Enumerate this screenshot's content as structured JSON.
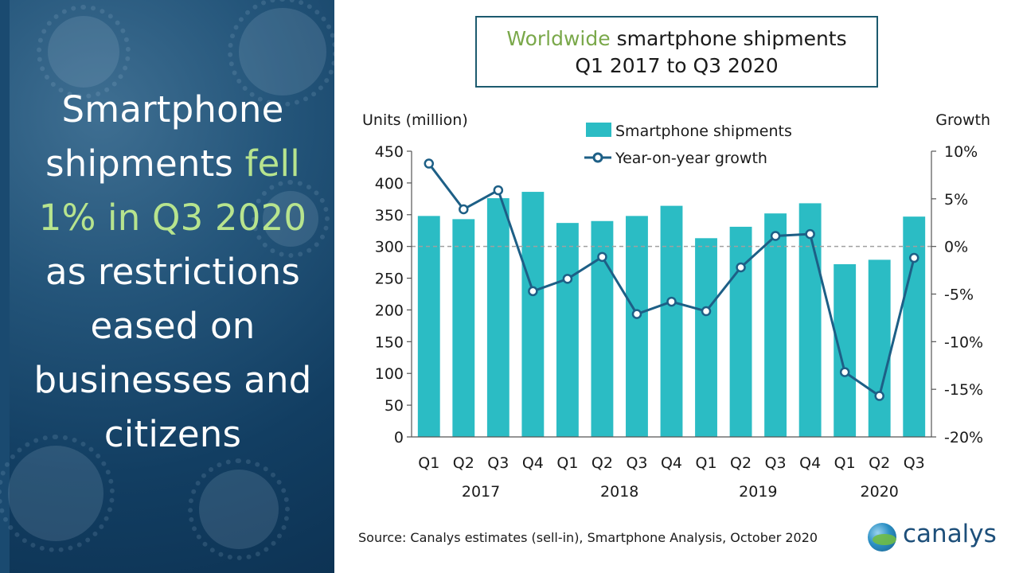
{
  "headline": {
    "line1": "Smartphone",
    "line2_a": "shipments ",
    "line2_b": "fell",
    "line3": "1% in Q3 2020",
    "line4": "as restrictions",
    "line5": "eased on",
    "line6": "businesses and",
    "line7": "citizens",
    "highlight_color": "#b7e48e"
  },
  "title": {
    "green_part": "Worldwide",
    "rest_part": " smartphone shipments",
    "line2": "Q1 2017 to Q3 2020"
  },
  "chart_data": {
    "type": "bar",
    "title": "Worldwide smartphone shipments Q1 2017 to Q3 2020",
    "ylabel": "Units (million)",
    "y2label": "Growth",
    "ylim": [
      0,
      450
    ],
    "y2lim": [
      -20,
      10
    ],
    "yticks": [
      "0",
      "50",
      "100",
      "150",
      "200",
      "250",
      "300",
      "350",
      "400",
      "450"
    ],
    "y2ticks": [
      "-20%",
      "-15%",
      "-10%",
      "-5%",
      "0%",
      "5%",
      "10%"
    ],
    "categories": [
      "Q1",
      "Q2",
      "Q3",
      "Q4",
      "Q1",
      "Q2",
      "Q3",
      "Q4",
      "Q1",
      "Q2",
      "Q3",
      "Q4",
      "Q1",
      "Q2",
      "Q3"
    ],
    "years": [
      {
        "label": "2017",
        "start": 0,
        "end": 3
      },
      {
        "label": "2018",
        "start": 4,
        "end": 7
      },
      {
        "label": "2019",
        "start": 8,
        "end": 11
      },
      {
        "label": "2020",
        "start": 12,
        "end": 14
      }
    ],
    "series": [
      {
        "name": "Smartphone shipments",
        "type": "bar",
        "axis": "left",
        "values": [
          348,
          343,
          376,
          386,
          337,
          340,
          348,
          364,
          313,
          331,
          352,
          368,
          272,
          279,
          347
        ],
        "color": "#2bbcc4"
      },
      {
        "name": "Year-on-year growth",
        "type": "line",
        "axis": "right",
        "values": [
          8.7,
          3.9,
          5.9,
          -4.7,
          -3.4,
          -1.1,
          -7.1,
          -5.8,
          -6.8,
          -2.2,
          1.1,
          1.3,
          -13.2,
          -15.7,
          -1.2
        ],
        "color": "#1d5f86"
      }
    ],
    "grid": false,
    "zero_growth_reference": "dashed line at 0%",
    "legend": "top-center"
  },
  "source": "Source: Canalys estimates (sell-in), Smartphone Analysis, October 2020",
  "logo_text": "canalys"
}
